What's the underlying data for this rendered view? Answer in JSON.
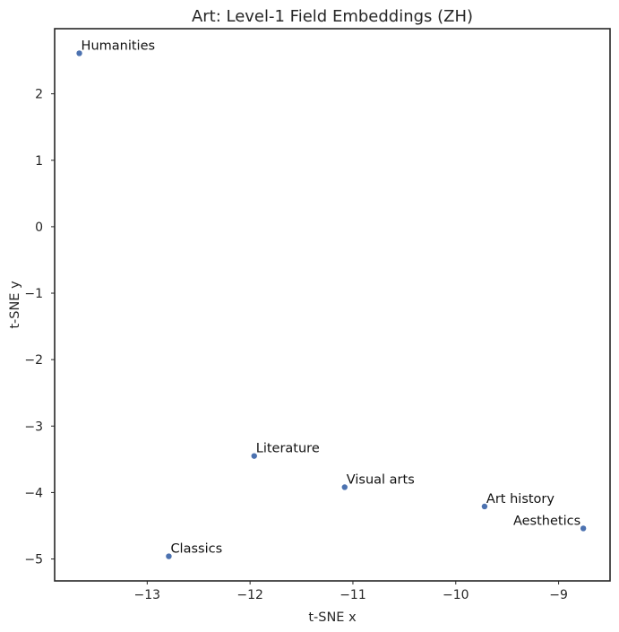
{
  "chart_data": {
    "type": "scatter",
    "title": "Art: Level-1 Field Embeddings (ZH)",
    "xlabel": "t-SNE x",
    "ylabel": "t-SNE y",
    "xlim": [
      -13.9,
      -8.5
    ],
    "ylim": [
      -5.33,
      2.98
    ],
    "xticks": [
      -13,
      -12,
      -11,
      -10,
      -9
    ],
    "yticks": [
      2,
      1,
      0,
      -1,
      -2,
      -3,
      -4,
      -5
    ],
    "xtick_labels": [
      "−13",
      "−12",
      "−11",
      "−10",
      "−9"
    ],
    "ytick_labels": [
      "2",
      "1",
      "0",
      "−1",
      "−2",
      "−3",
      "−4",
      "−5"
    ],
    "grid": false,
    "marker_color": "#4c72b0",
    "points": [
      {
        "label": "Humanities",
        "x": -13.66,
        "y": 2.61,
        "align": "left"
      },
      {
        "label": "Literature",
        "x": -11.96,
        "y": -3.45,
        "align": "left"
      },
      {
        "label": "Visual arts",
        "x": -11.08,
        "y": -3.92,
        "align": "left"
      },
      {
        "label": "Art history",
        "x": -9.72,
        "y": -4.21,
        "align": "left"
      },
      {
        "label": "Aesthetics",
        "x": -8.76,
        "y": -4.54,
        "align": "right"
      },
      {
        "label": "Classics",
        "x": -12.79,
        "y": -4.96,
        "align": "left"
      }
    ]
  }
}
